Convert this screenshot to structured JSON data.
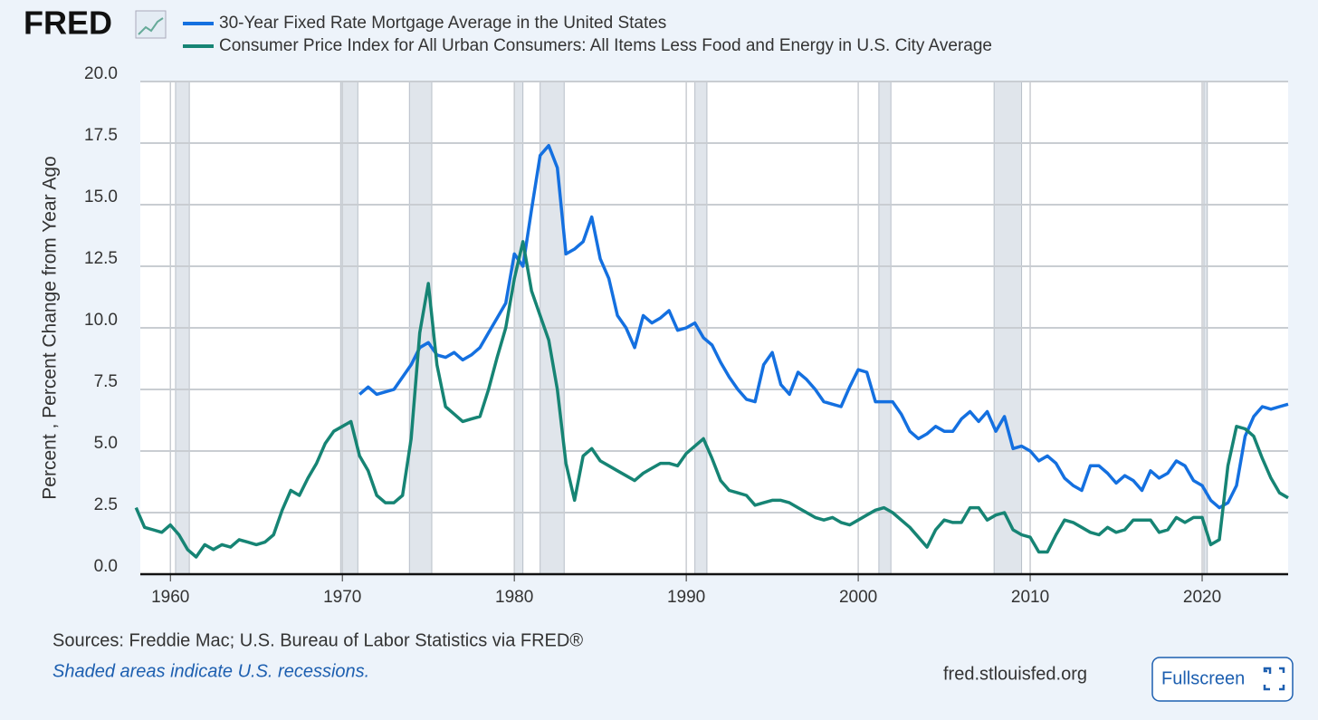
{
  "logo": "FRED",
  "chart_data": {
    "type": "line",
    "y_label": "Percent , Percent Change from Year Ago",
    "x": [
      1958,
      1958.5,
      1959,
      1959.5,
      1960,
      1960.5,
      1961,
      1961.5,
      1962,
      1962.5,
      1963,
      1963.5,
      1964,
      1964.5,
      1965,
      1965.5,
      1966,
      1966.5,
      1967,
      1967.5,
      1968,
      1968.5,
      1969,
      1969.5,
      1970,
      1970.5,
      1971,
      1971.5,
      1972,
      1972.5,
      1973,
      1973.5,
      1974,
      1974.5,
      1975,
      1975.5,
      1976,
      1976.5,
      1977,
      1977.5,
      1978,
      1978.5,
      1979,
      1979.5,
      1980,
      1980.5,
      1981,
      1981.5,
      1982,
      1982.5,
      1983,
      1983.5,
      1984,
      1984.5,
      1985,
      1985.5,
      1986,
      1986.5,
      1987,
      1987.5,
      1988,
      1988.5,
      1989,
      1989.5,
      1990,
      1990.5,
      1991,
      1991.5,
      1992,
      1992.5,
      1993,
      1993.5,
      1994,
      1994.5,
      1995,
      1995.5,
      1996,
      1996.5,
      1997,
      1997.5,
      1998,
      1998.5,
      1999,
      1999.5,
      2000,
      2000.5,
      2001,
      2001.5,
      2002,
      2002.5,
      2003,
      2003.5,
      2004,
      2004.5,
      2005,
      2005.5,
      2006,
      2006.5,
      2007,
      2007.5,
      2008,
      2008.5,
      2009,
      2009.5,
      2010,
      2010.5,
      2011,
      2011.5,
      2012,
      2012.5,
      2013,
      2013.5,
      2014,
      2014.5,
      2015,
      2015.5,
      2016,
      2016.5,
      2017,
      2017.5,
      2018,
      2018.5,
      2019,
      2019.5,
      2020,
      2020.5,
      2021,
      2021.5,
      2022,
      2022.5,
      2023,
      2023.5,
      2024,
      2024.5,
      2025
    ],
    "series": [
      {
        "name": "30-Year Fixed Rate Mortgage Average in the United States",
        "color": "#1470e0",
        "values": [
          null,
          null,
          null,
          null,
          null,
          null,
          null,
          null,
          null,
          null,
          null,
          null,
          null,
          null,
          null,
          null,
          null,
          null,
          null,
          null,
          null,
          null,
          null,
          null,
          null,
          null,
          7.3,
          7.6,
          7.3,
          7.4,
          7.5,
          8.0,
          8.5,
          9.2,
          9.4,
          8.9,
          8.8,
          9.0,
          8.7,
          8.9,
          9.2,
          9.8,
          10.4,
          11.0,
          13.0,
          12.5,
          14.8,
          17.0,
          17.4,
          16.5,
          13.0,
          13.2,
          13.5,
          14.5,
          12.8,
          12.0,
          10.5,
          10.0,
          9.2,
          10.5,
          10.2,
          10.4,
          10.7,
          9.9,
          10.0,
          10.2,
          9.6,
          9.3,
          8.6,
          8.0,
          7.5,
          7.1,
          7.0,
          8.5,
          9.0,
          7.7,
          7.3,
          8.2,
          7.9,
          7.5,
          7.0,
          6.9,
          6.8,
          7.6,
          8.3,
          8.2,
          7.0,
          7.0,
          7.0,
          6.5,
          5.8,
          5.5,
          5.7,
          6.0,
          5.8,
          5.8,
          6.3,
          6.6,
          6.2,
          6.6,
          5.8,
          6.4,
          5.1,
          5.2,
          5.0,
          4.6,
          4.8,
          4.5,
          3.9,
          3.6,
          3.4,
          4.4,
          4.4,
          4.1,
          3.7,
          4.0,
          3.8,
          3.4,
          4.2,
          3.9,
          4.1,
          4.6,
          4.4,
          3.8,
          3.6,
          3.0,
          2.7,
          2.9,
          3.6,
          5.6,
          6.4,
          6.8,
          6.7,
          6.8,
          6.9
        ]
      },
      {
        "name": "Consumer Price Index for All Urban Consumers: All Items Less Food and Energy in U.S. City Average",
        "color": "#168474",
        "values": [
          2.7,
          1.9,
          1.8,
          1.7,
          2.0,
          1.6,
          1.0,
          0.7,
          1.2,
          1.0,
          1.2,
          1.1,
          1.4,
          1.3,
          1.2,
          1.3,
          1.6,
          2.6,
          3.4,
          3.2,
          3.9,
          4.5,
          5.3,
          5.8,
          6.0,
          6.2,
          4.8,
          4.2,
          3.2,
          2.9,
          2.9,
          3.2,
          5.5,
          9.8,
          11.8,
          8.5,
          6.8,
          6.5,
          6.2,
          6.3,
          6.4,
          7.5,
          8.8,
          10.0,
          12.0,
          13.5,
          11.5,
          10.5,
          9.5,
          7.5,
          4.5,
          3.0,
          4.8,
          5.1,
          4.6,
          4.4,
          4.2,
          4.0,
          3.8,
          4.1,
          4.3,
          4.5,
          4.5,
          4.4,
          4.9,
          5.2,
          5.5,
          4.7,
          3.8,
          3.4,
          3.3,
          3.2,
          2.8,
          2.9,
          3.0,
          3.0,
          2.9,
          2.7,
          2.5,
          2.3,
          2.2,
          2.3,
          2.1,
          2.0,
          2.2,
          2.4,
          2.6,
          2.7,
          2.5,
          2.2,
          1.9,
          1.5,
          1.1,
          1.8,
          2.2,
          2.1,
          2.1,
          2.7,
          2.7,
          2.2,
          2.4,
          2.5,
          1.8,
          1.6,
          1.5,
          0.9,
          0.9,
          1.6,
          2.2,
          2.1,
          1.9,
          1.7,
          1.6,
          1.9,
          1.7,
          1.8,
          2.2,
          2.2,
          2.2,
          1.7,
          1.8,
          2.3,
          2.1,
          2.3,
          2.3,
          1.2,
          1.4,
          4.4,
          6.0,
          5.9,
          5.6,
          4.7,
          3.9,
          3.3,
          3.1
        ]
      }
    ],
    "recessions": [
      [
        1960.3,
        1961.1
      ],
      [
        1969.9,
        1970.9
      ],
      [
        1973.9,
        1975.2
      ],
      [
        1980.0,
        1980.5
      ],
      [
        1981.5,
        1982.9
      ],
      [
        1990.5,
        1991.2
      ],
      [
        2001.2,
        2001.9
      ],
      [
        2007.9,
        2009.5
      ],
      [
        2020.1,
        2020.3
      ]
    ],
    "xlim": [
      1958.25,
      2025
    ],
    "xticks": [
      1960,
      1970,
      1980,
      1990,
      2000,
      2010,
      2020
    ],
    "ylim": [
      0,
      20
    ],
    "yticks": [
      {
        "value": 0,
        "label": "0.0"
      },
      2.5,
      {
        "value": 5,
        "label": "5.0"
      },
      7.5,
      {
        "value": 10,
        "label": "10.0"
      },
      12.5,
      {
        "value": 15,
        "label": "15.0"
      },
      17.5,
      {
        "value": 20,
        "label": "20.0"
      }
    ],
    "grid": true,
    "sources": "Sources: Freddie Mac; U.S. Bureau of Labor Statistics via FRED®",
    "note": "Shaded areas indicate U.S. recessions.",
    "site": "fred.stlouisfed.org",
    "button": "Fullscreen"
  }
}
